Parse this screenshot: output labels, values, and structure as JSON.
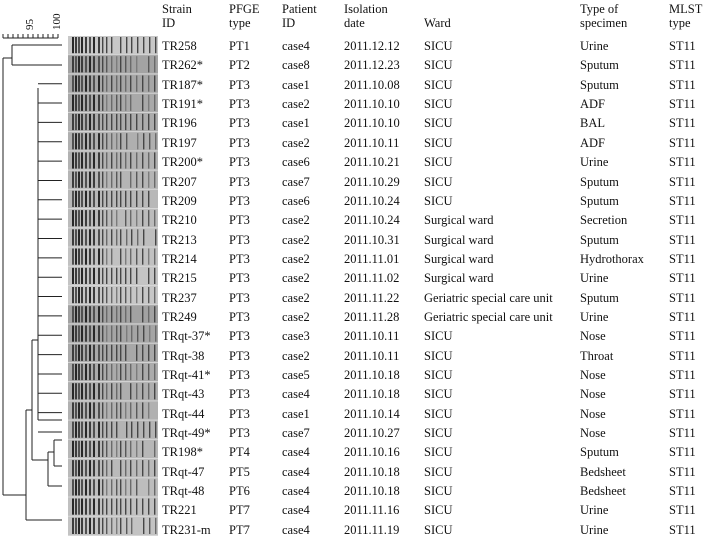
{
  "scale": {
    "labels": [
      "95",
      "100"
    ]
  },
  "headers": {
    "strain": [
      "Strain",
      "ID"
    ],
    "pfge": [
      "PFGE",
      "type"
    ],
    "patient": [
      "Patient",
      "ID"
    ],
    "date": [
      "Isolation",
      "date"
    ],
    "ward": [
      "Ward"
    ],
    "specimen": [
      "Type of",
      "specimen"
    ],
    "mlst": [
      "MLST",
      "type"
    ]
  },
  "rows": [
    {
      "strain": "TR258",
      "pfge": "PT1",
      "patient": "case4",
      "date": "2011.12.12",
      "ward": "SICU",
      "specimen": "Urine",
      "mlst": "ST11"
    },
    {
      "strain": "TR262*",
      "pfge": "PT2",
      "patient": "case8",
      "date": "2011.12.23",
      "ward": "SICU",
      "specimen": "Sputum",
      "mlst": "ST11"
    },
    {
      "strain": "TR187*",
      "pfge": "PT3",
      "patient": "case1",
      "date": "2011.10.08",
      "ward": "SICU",
      "specimen": "Sputum",
      "mlst": "ST11"
    },
    {
      "strain": "TR191*",
      "pfge": "PT3",
      "patient": "case2",
      "date": "2011.10.10",
      "ward": "SICU",
      "specimen": "ADF",
      "mlst": "ST11"
    },
    {
      "strain": "TR196",
      "pfge": "PT3",
      "patient": "case1",
      "date": "2011.10.10",
      "ward": "SICU",
      "specimen": "BAL",
      "mlst": "ST11"
    },
    {
      "strain": "TR197",
      "pfge": "PT3",
      "patient": "case2",
      "date": "2011.10.11",
      "ward": "SICU",
      "specimen": "ADF",
      "mlst": "ST11"
    },
    {
      "strain": "TR200*",
      "pfge": "PT3",
      "patient": "case6",
      "date": "2011.10.21",
      "ward": "SICU",
      "specimen": "Urine",
      "mlst": "ST11"
    },
    {
      "strain": "TR207",
      "pfge": "PT3",
      "patient": "case7",
      "date": "2011.10.29",
      "ward": "SICU",
      "specimen": "Sputum",
      "mlst": "ST11"
    },
    {
      "strain": "TR209",
      "pfge": "PT3",
      "patient": "case6",
      "date": "2011.10.24",
      "ward": "SICU",
      "specimen": "Sputum",
      "mlst": "ST11"
    },
    {
      "strain": "TR210",
      "pfge": "PT3",
      "patient": "case2",
      "date": "2011.10.24",
      "ward": "Surgical ward",
      "specimen": "Secretion",
      "mlst": "ST11"
    },
    {
      "strain": "TR213",
      "pfge": "PT3",
      "patient": "case2",
      "date": "2011.10.31",
      "ward": "Surgical ward",
      "specimen": "Sputum",
      "mlst": "ST11"
    },
    {
      "strain": "TR214",
      "pfge": "PT3",
      "patient": "case2",
      "date": "2011.11.01",
      "ward": "Surgical ward",
      "specimen": "Hydrothorax",
      "mlst": "ST11"
    },
    {
      "strain": "TR215",
      "pfge": "PT3",
      "patient": "case2",
      "date": "2011.11.02",
      "ward": "Surgical ward",
      "specimen": "Urine",
      "mlst": "ST11"
    },
    {
      "strain": "TR237",
      "pfge": "PT3",
      "patient": "case2",
      "date": "2011.11.22",
      "ward": "Geriatric special care unit",
      "specimen": "Sputum",
      "mlst": "ST11"
    },
    {
      "strain": "TR249",
      "pfge": "PT3",
      "patient": "case2",
      "date": "2011.11.28",
      "ward": "Geriatric special care unit",
      "specimen": "Urine",
      "mlst": "ST11"
    },
    {
      "strain": "TRqt-37*",
      "pfge": "PT3",
      "patient": "case3",
      "date": "2011.10.11",
      "ward": "SICU",
      "specimen": "Nose",
      "mlst": "ST11"
    },
    {
      "strain": "TRqt-38",
      "pfge": "PT3",
      "patient": "case2",
      "date": "2011.10.11",
      "ward": "SICU",
      "specimen": "Throat",
      "mlst": "ST11"
    },
    {
      "strain": "TRqt-41*",
      "pfge": "PT3",
      "patient": "case5",
      "date": "2011.10.18",
      "ward": "SICU",
      "specimen": "Nose",
      "mlst": "ST11"
    },
    {
      "strain": "TRqt-43",
      "pfge": "PT3",
      "patient": "case4",
      "date": "2011.10.18",
      "ward": "SICU",
      "specimen": "Nose",
      "mlst": "ST11"
    },
    {
      "strain": "TRqt-44",
      "pfge": "PT3",
      "patient": "case1",
      "date": "2011.10.14",
      "ward": "SICU",
      "specimen": "Nose",
      "mlst": "ST11"
    },
    {
      "strain": "TRqt-49*",
      "pfge": "PT3",
      "patient": "case7",
      "date": "2011.10.27",
      "ward": "SICU",
      "specimen": "Nose",
      "mlst": "ST11"
    },
    {
      "strain": "TR198*",
      "pfge": "PT4",
      "patient": "case4",
      "date": "2011.10.16",
      "ward": "SICU",
      "specimen": "Sputum",
      "mlst": "ST11"
    },
    {
      "strain": "TRqt-47",
      "pfge": "PT5",
      "patient": "case4",
      "date": "2011.10.18",
      "ward": "SICU",
      "specimen": "Bedsheet",
      "mlst": "ST11"
    },
    {
      "strain": "TRqt-48",
      "pfge": "PT6",
      "patient": "case4",
      "date": "2011.10.18",
      "ward": "SICU",
      "specimen": "Bedsheet",
      "mlst": "ST11"
    },
    {
      "strain": "TR221",
      "pfge": "PT7",
      "patient": "case4",
      "date": "2011.11.16",
      "ward": "SICU",
      "specimen": "Urine",
      "mlst": "ST11"
    },
    {
      "strain": "TR231-m",
      "pfge": "PT7",
      "patient": "case4",
      "date": "2011.11.19",
      "ward": "SICU",
      "specimen": "Urine",
      "mlst": "ST11"
    }
  ]
}
